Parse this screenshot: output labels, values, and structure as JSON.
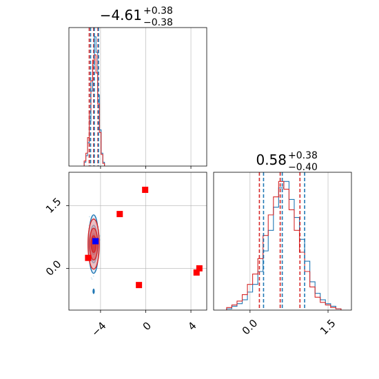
{
  "chart_data": {
    "type": "corner",
    "colors": {
      "posterior_a": "#1f77b4",
      "posterior_b": "#d62728",
      "marker_points": "#ff0000",
      "truth_marker": "#0000ff",
      "grid": "#b0b0b0"
    },
    "grid": true,
    "panels": [
      {
        "id": "hist_param1",
        "type": "histogram",
        "title": {
          "main": "−4.61",
          "sup": "+0.38",
          "sub": "−0.38"
        },
        "xlim": [
          -6.8,
          5.4
        ],
        "x_ticks": [
          -4,
          0,
          4
        ],
        "tick_labels_shown": false,
        "quantile_lines": {
          "posterior_b": [
            -5.0,
            -4.61,
            -4.23
          ],
          "posterior_a": [
            -4.88,
            -4.55,
            -4.18
          ]
        },
        "series": [
          {
            "name": "",
            "color": "posterior_a",
            "bin_left": [
              -5.45,
              -5.3,
              -5.15,
              -5.0,
              -4.85,
              -4.7,
              -4.55,
              -4.4,
              -4.25,
              -4.1,
              -3.95,
              -3.8
            ],
            "counts": [
              0.03,
              0.08,
              0.18,
              0.35,
              0.58,
              0.78,
              1.0,
              0.88,
              0.55,
              0.28,
              0.1,
              0.03
            ]
          },
          {
            "name": "",
            "color": "posterior_b",
            "bin_left": [
              -5.45,
              -5.3,
              -5.15,
              -5.0,
              -4.85,
              -4.7,
              -4.55,
              -4.4,
              -4.25,
              -4.1,
              -3.95,
              -3.8
            ],
            "counts": [
              0.04,
              0.1,
              0.22,
              0.42,
              0.66,
              0.82,
              0.86,
              0.72,
              0.48,
              0.26,
              0.09,
              0.02
            ]
          }
        ]
      },
      {
        "id": "scatter_2d",
        "type": "scatter_contour",
        "xlim": [
          -6.8,
          5.4
        ],
        "ylim": [
          -1.0,
          2.3
        ],
        "x_ticks": [
          -4,
          0,
          4
        ],
        "x_tick_labels": [
          "−4",
          "0",
          "4"
        ],
        "y_ticks": [
          0.0,
          1.5
        ],
        "y_tick_labels": [
          "0.0",
          "1.5"
        ],
        "contours": {
          "center": [
            -4.61,
            0.58
          ],
          "posterior_a_sigma": [
            [
              0.2,
              0.25
            ],
            [
              0.32,
              0.45
            ],
            [
              0.45,
              0.7
            ]
          ],
          "posterior_b_sigma": [
            [
              0.22,
              0.2
            ],
            [
              0.36,
              0.38
            ],
            [
              0.5,
              0.6
            ]
          ]
        },
        "marker_points": [
          [
            -0.05,
            1.88
          ],
          [
            -2.3,
            1.3
          ],
          [
            -5.1,
            0.25
          ],
          [
            -0.6,
            -0.4
          ],
          [
            4.5,
            -0.1
          ],
          [
            4.75,
            0.0
          ]
        ],
        "truth_point": [
          -4.45,
          0.65
        ]
      },
      {
        "id": "hist_param2",
        "type": "histogram",
        "title": {
          "main": "0.58",
          "sup": "+0.38",
          "sub": "−0.40"
        },
        "xlim": [
          -0.7,
          1.95
        ],
        "x_ticks": [
          0.0,
          1.5
        ],
        "x_tick_labels": [
          "0.0",
          "1.5"
        ],
        "quantile_lines": {
          "posterior_b": [
            0.18,
            0.58,
            0.96
          ],
          "posterior_a": [
            0.26,
            0.62,
            1.05
          ]
        },
        "series": [
          {
            "name": "",
            "color": "posterior_a",
            "bin_left": [
              -0.45,
              -0.35,
              -0.25,
              -0.15,
              -0.05,
              0.05,
              0.15,
              0.25,
              0.35,
              0.45,
              0.55,
              0.65,
              0.75,
              0.85,
              0.95,
              1.05,
              1.15,
              1.25,
              1.35,
              1.45,
              1.55,
              1.65
            ],
            "counts": [
              0.01,
              0.03,
              0.05,
              0.08,
              0.14,
              0.2,
              0.3,
              0.46,
              0.62,
              0.8,
              0.95,
              1.0,
              0.86,
              0.72,
              0.55,
              0.38,
              0.22,
              0.13,
              0.08,
              0.05,
              0.03,
              0.01
            ]
          },
          {
            "name": "",
            "color": "posterior_b",
            "bin_left": [
              -0.45,
              -0.35,
              -0.25,
              -0.15,
              -0.05,
              0.05,
              0.15,
              0.25,
              0.35,
              0.45,
              0.55,
              0.65,
              0.75,
              0.85,
              0.95,
              1.05,
              1.15,
              1.25,
              1.35,
              1.45,
              1.55,
              1.65
            ],
            "counts": [
              0.02,
              0.04,
              0.07,
              0.12,
              0.2,
              0.28,
              0.4,
              0.58,
              0.74,
              0.88,
              1.0,
              0.94,
              0.78,
              0.62,
              0.45,
              0.3,
              0.18,
              0.1,
              0.06,
              0.04,
              0.02,
              0.01
            ]
          }
        ]
      }
    ]
  }
}
